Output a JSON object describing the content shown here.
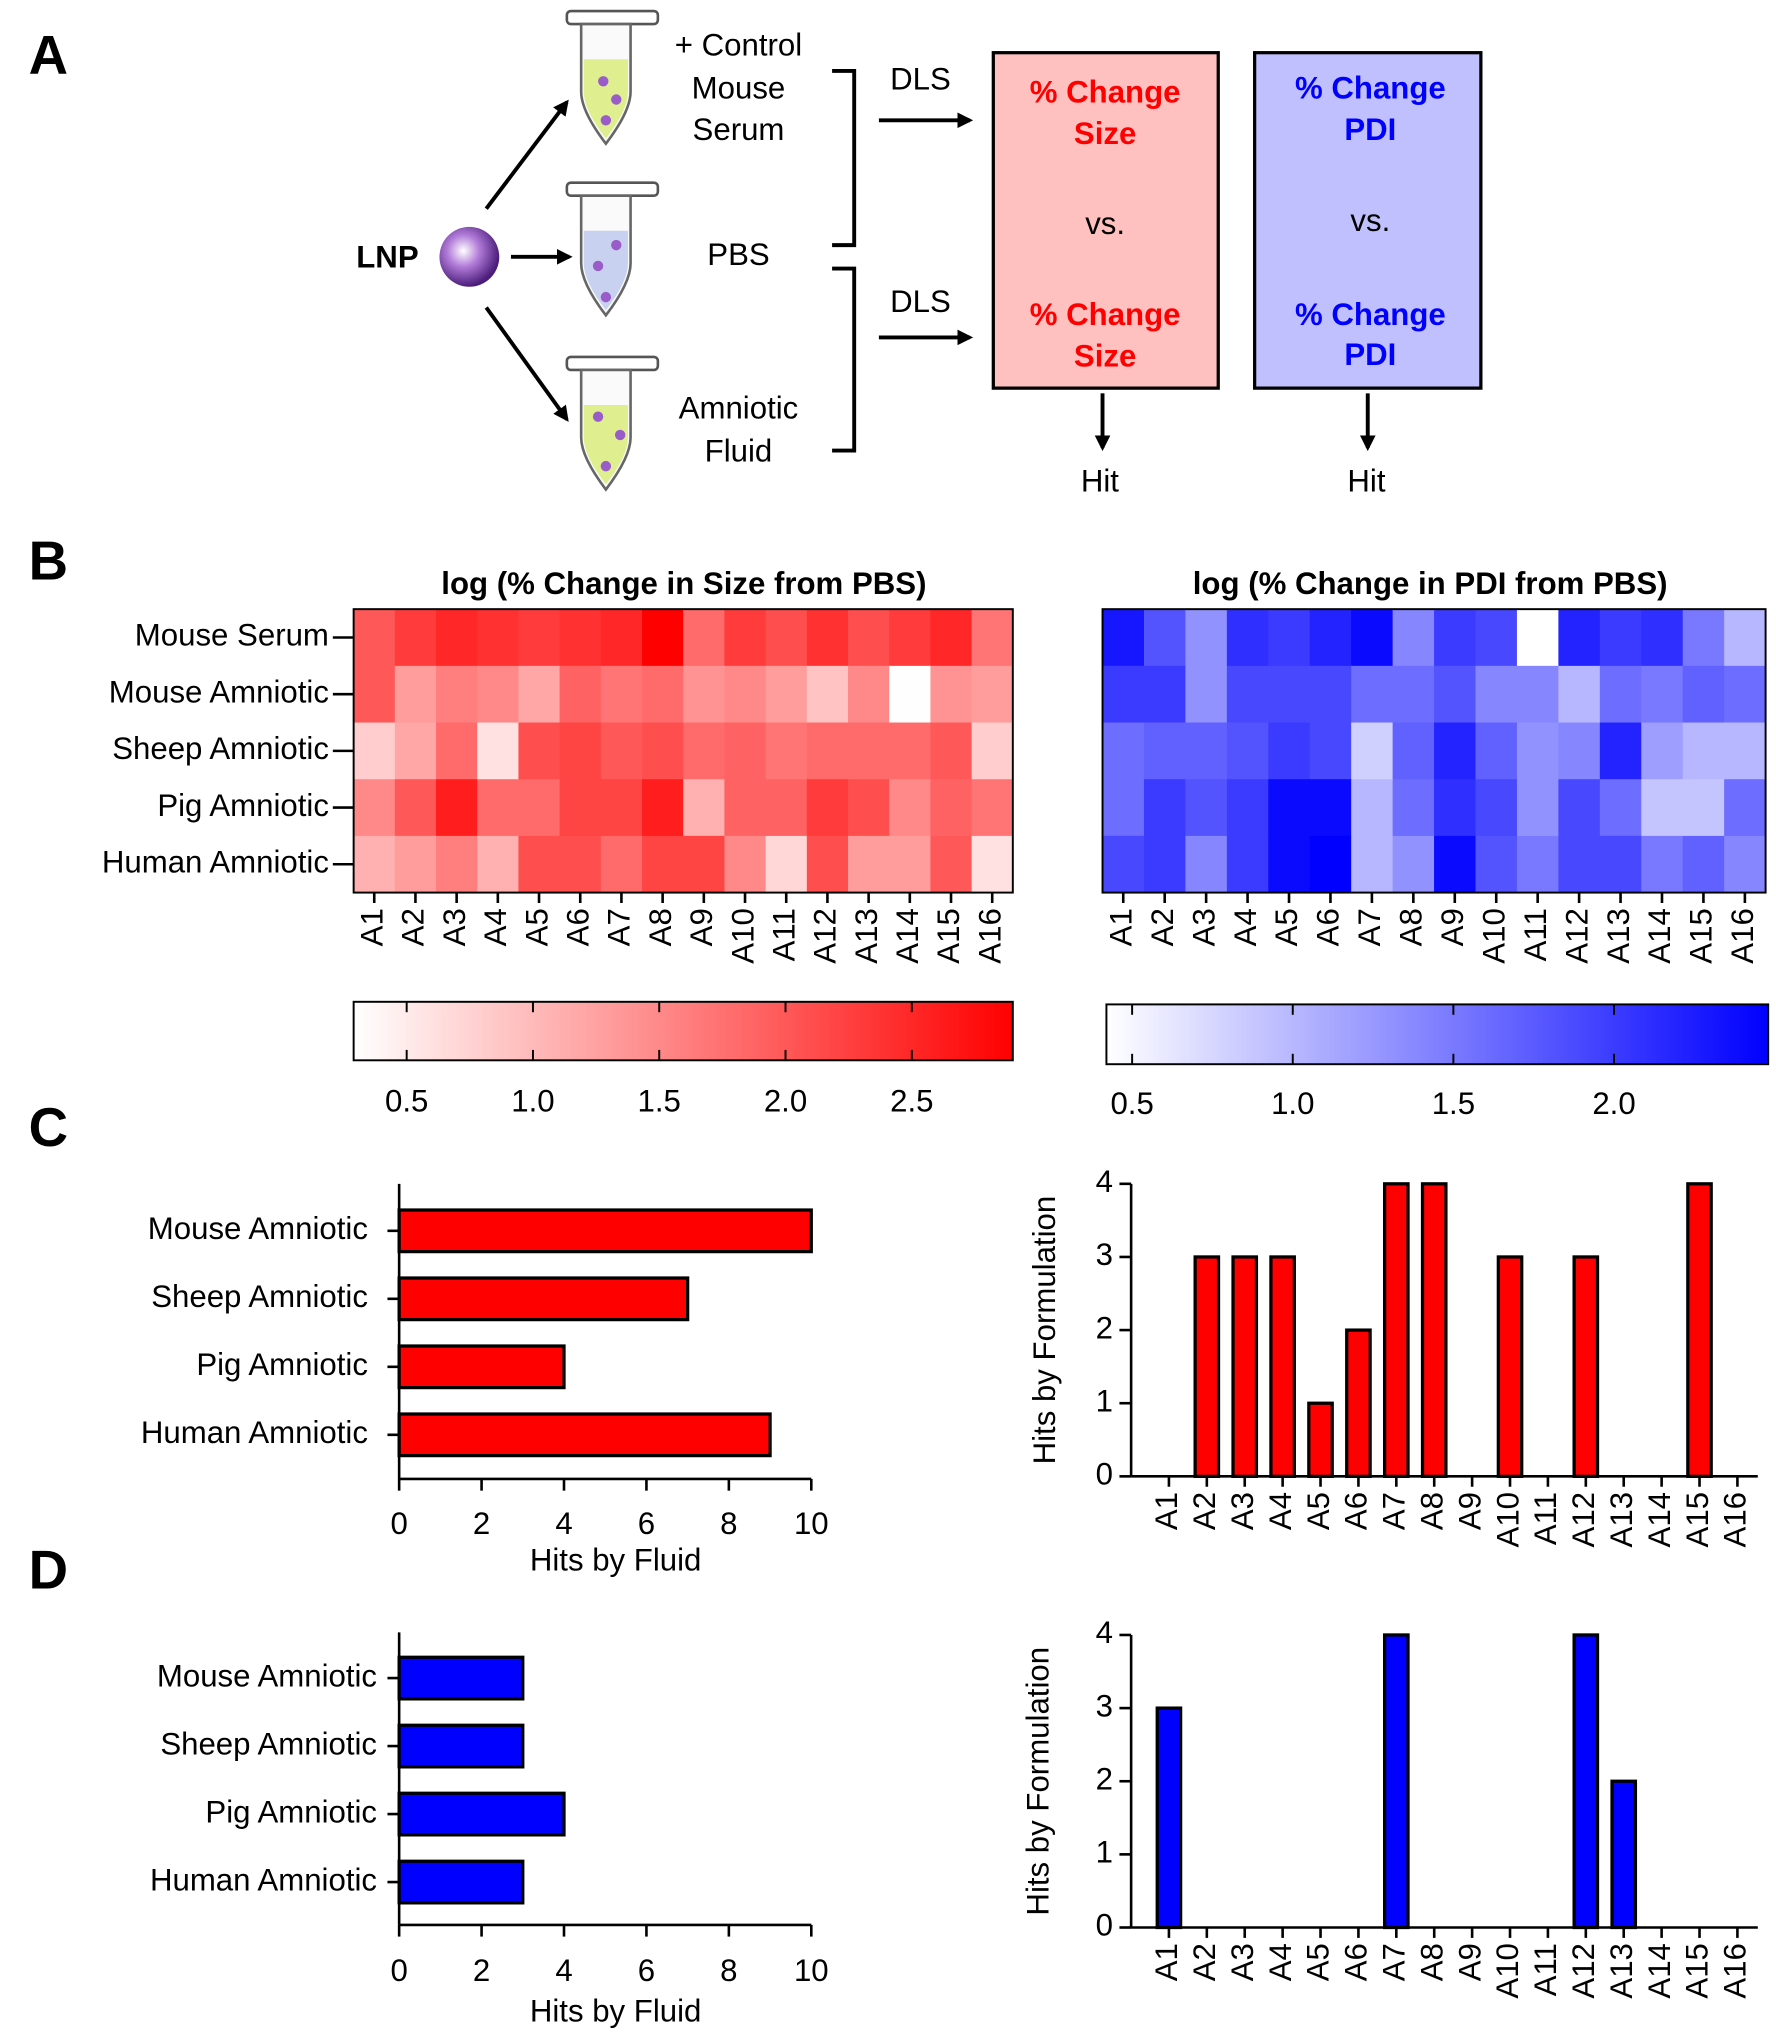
{
  "panels": [
    "A",
    "B",
    "C",
    "D"
  ],
  "diagram": {
    "particle": "LNP",
    "fluids": [
      [
        "+ Control",
        "Mouse",
        "Serum"
      ],
      [
        "PBS"
      ],
      [
        "Amniotic",
        "Fluid"
      ]
    ],
    "method": [
      "DLS",
      "DLS"
    ],
    "boxes": [
      [
        "% Change",
        "Size",
        "vs.",
        "% Change",
        "Size"
      ],
      [
        "% Change",
        "PDI",
        "vs.",
        "% Change",
        "PDI"
      ]
    ],
    "result": [
      "Hit",
      "Hit"
    ]
  },
  "chart_data": [
    {
      "type": "heatmap",
      "title": "log (% Change in Size from PBS)",
      "rows": [
        "Mouse Serum",
        "Mouse Amniotic",
        "Sheep Amniotic",
        "Pig Amniotic",
        "Human Amniotic"
      ],
      "columns": [
        "A1",
        "A2",
        "A3",
        "A4",
        "A5",
        "A6",
        "A7",
        "A8",
        "A9",
        "A10",
        "A11",
        "A12",
        "A13",
        "A14",
        "A15",
        "A16"
      ],
      "values": [
        [
          2.0,
          2.3,
          2.5,
          2.4,
          2.3,
          2.4,
          2.5,
          2.9,
          1.8,
          2.3,
          2.1,
          2.4,
          2.1,
          2.3,
          2.5,
          1.7
        ],
        [
          2.0,
          1.3,
          1.6,
          1.5,
          1.2,
          1.9,
          1.7,
          1.8,
          1.4,
          1.5,
          1.3,
          0.9,
          1.5,
          0.3,
          1.4,
          1.3
        ],
        [
          0.8,
          1.2,
          1.8,
          0.6,
          2.1,
          2.2,
          2.0,
          2.1,
          1.8,
          1.9,
          1.7,
          1.8,
          1.8,
          1.8,
          2.0,
          0.8
        ],
        [
          1.5,
          2.0,
          2.6,
          1.8,
          1.8,
          2.2,
          2.2,
          2.6,
          1.1,
          1.9,
          1.9,
          2.3,
          2.1,
          1.5,
          1.9,
          1.7
        ],
        [
          1.1,
          1.3,
          1.6,
          1.1,
          2.1,
          2.1,
          1.8,
          2.2,
          2.2,
          1.5,
          0.7,
          2.1,
          1.3,
          1.3,
          2.0,
          0.6
        ]
      ],
      "colorbar": {
        "lim": [
          0.29,
          2.9
        ],
        "colors": [
          "#ffffff",
          "#ff0000"
        ],
        "ticks": [
          {
            "value": 0.5,
            "label": "0.5"
          },
          {
            "value": 1,
            "label": "1.0"
          },
          {
            "value": 1.5,
            "label": "1.5"
          },
          {
            "value": 2,
            "label": "2.0"
          },
          {
            "value": 2.5,
            "label": "2.5"
          }
        ]
      }
    },
    {
      "type": "heatmap",
      "title": "log (% Change in PDI from PBS)",
      "columns": [
        "A1",
        "A2",
        "A3",
        "A4",
        "A5",
        "A6",
        "A7",
        "A8",
        "A9",
        "A10",
        "A11",
        "A12",
        "A13",
        "A14",
        "A15",
        "A16"
      ],
      "values": [
        [
          2.3,
          1.8,
          1.3,
          2.1,
          2.0,
          2.2,
          2.4,
          1.4,
          2.0,
          1.9,
          0.42,
          2.2,
          2.0,
          2.1,
          1.5,
          1.0
        ],
        [
          2.0,
          2.0,
          1.3,
          1.9,
          1.9,
          1.9,
          1.6,
          1.6,
          1.8,
          1.4,
          1.4,
          1.0,
          1.6,
          1.5,
          1.7,
          1.6
        ],
        [
          1.6,
          1.7,
          1.7,
          1.8,
          2.0,
          1.9,
          0.8,
          1.7,
          2.2,
          1.7,
          1.3,
          1.4,
          2.2,
          1.2,
          1.0,
          1.0
        ],
        [
          1.6,
          2.0,
          1.8,
          2.0,
          2.4,
          2.4,
          1.0,
          1.6,
          2.1,
          1.9,
          1.3,
          1.9,
          1.6,
          0.9,
          0.9,
          1.6
        ],
        [
          1.9,
          2.0,
          1.4,
          2.0,
          2.4,
          2.5,
          1.0,
          1.3,
          2.4,
          1.8,
          1.5,
          1.9,
          1.9,
          1.5,
          1.7,
          1.4
        ]
      ],
      "colorbar": {
        "lim": [
          0.42,
          2.48
        ],
        "colors": [
          "#ffffff",
          "#0000ff"
        ],
        "ticks": [
          {
            "value": 0.5,
            "label": "0.5"
          },
          {
            "value": 1,
            "label": "1.0"
          },
          {
            "value": 1.5,
            "label": "1.5"
          },
          {
            "value": 2,
            "label": "2.0"
          }
        ]
      }
    },
    {
      "type": "bar",
      "orientation": "horizontal",
      "categories": [
        "Mouse Amniotic",
        "Sheep Amniotic",
        "Pig Amniotic",
        "Human Amniotic"
      ],
      "values": [
        10,
        7,
        4,
        9
      ],
      "color": "#ff0000",
      "xlim": [
        0,
        10
      ],
      "xticks": [
        0,
        2,
        4,
        6,
        8,
        10
      ],
      "xlabel": "Hits by Fluid"
    },
    {
      "type": "bar",
      "orientation": "vertical",
      "categories": [
        "A1",
        "A2",
        "A3",
        "A4",
        "A5",
        "A6",
        "A7",
        "A8",
        "A9",
        "A10",
        "A11",
        "A12",
        "A13",
        "A14",
        "A15",
        "A16"
      ],
      "values": [
        0,
        3,
        3,
        3,
        1,
        2,
        4,
        4,
        0,
        3,
        0,
        3,
        0,
        0,
        4,
        0
      ],
      "color": "#ff0000",
      "ylim": [
        0,
        4
      ],
      "yticks": [
        0,
        1,
        2,
        3,
        4
      ],
      "ylabel": "Hits by Formulation"
    },
    {
      "type": "bar",
      "orientation": "horizontal",
      "categories": [
        "Mouse Amniotic",
        "Sheep Amniotic",
        "Pig Amniotic",
        "Human Amniotic"
      ],
      "values": [
        3,
        3,
        4,
        3
      ],
      "color": "#0000ff",
      "xlim": [
        0,
        10
      ],
      "xticks": [
        0,
        2,
        4,
        6,
        8,
        10
      ],
      "xlabel": "Hits by Fluid"
    },
    {
      "type": "bar",
      "orientation": "vertical",
      "categories": [
        "A1",
        "A2",
        "A3",
        "A4",
        "A5",
        "A6",
        "A7",
        "A8",
        "A9",
        "A10",
        "A11",
        "A12",
        "A13",
        "A14",
        "A15",
        "A16"
      ],
      "values": [
        3,
        0,
        0,
        0,
        0,
        0,
        4,
        0,
        0,
        0,
        0,
        4,
        2,
        0,
        0,
        0
      ],
      "color": "#0000ff",
      "ylim": [
        0,
        4
      ],
      "yticks": [
        0,
        1,
        2,
        3,
        4
      ],
      "ylabel": "Hits by Formulation"
    }
  ]
}
